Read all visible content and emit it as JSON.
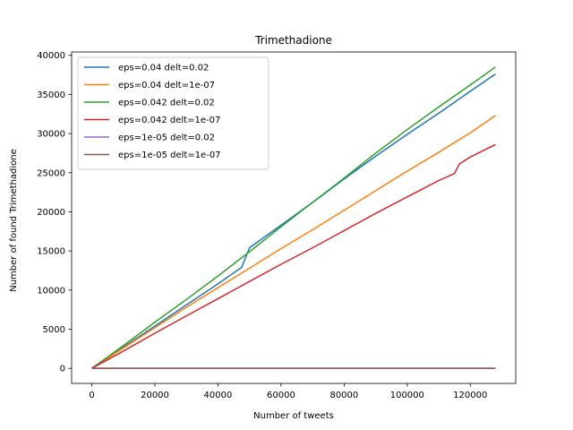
{
  "chart_data": {
    "type": "line",
    "title": "Trimethadione",
    "xlabel": "Number of tweets",
    "ylabel": "Number of found Trimethadione",
    "xlim": [
      -6400,
      134400
    ],
    "ylim": [
      -1925,
      40425
    ],
    "xticks": [
      0,
      20000,
      40000,
      60000,
      80000,
      100000,
      120000
    ],
    "yticks": [
      0,
      5000,
      10000,
      15000,
      20000,
      25000,
      30000,
      35000,
      40000
    ],
    "legend_position": "upper left",
    "grid": false,
    "series": [
      {
        "name": "eps=0.04 delt=0.02",
        "color": "#1f77b4",
        "points": [
          [
            0,
            0
          ],
          [
            10000,
            2700
          ],
          [
            20000,
            5400
          ],
          [
            30000,
            8100
          ],
          [
            40000,
            10800
          ],
          [
            47500,
            12900
          ],
          [
            50000,
            15400
          ],
          [
            60000,
            18300
          ],
          [
            70000,
            21200
          ],
          [
            80000,
            24200
          ],
          [
            90000,
            27100
          ],
          [
            100000,
            29900
          ],
          [
            110000,
            32600
          ],
          [
            120000,
            35400
          ],
          [
            128000,
            37600
          ]
        ]
      },
      {
        "name": "eps=0.04 delt=1e-07",
        "color": "#ff7f0e",
        "points": [
          [
            0,
            0
          ],
          [
            10000,
            2600
          ],
          [
            20000,
            5200
          ],
          [
            30000,
            7800
          ],
          [
            40000,
            10300
          ],
          [
            50000,
            12800
          ],
          [
            60000,
            15300
          ],
          [
            70000,
            17700
          ],
          [
            80000,
            20200
          ],
          [
            90000,
            22700
          ],
          [
            100000,
            25200
          ],
          [
            110000,
            27600
          ],
          [
            120000,
            30100
          ],
          [
            128000,
            32300
          ]
        ]
      },
      {
        "name": "eps=0.042 delt=0.02",
        "color": "#2ca02c",
        "points": [
          [
            0,
            0
          ],
          [
            10000,
            2900
          ],
          [
            20000,
            5900
          ],
          [
            30000,
            8800
          ],
          [
            40000,
            11800
          ],
          [
            50000,
            14900
          ],
          [
            60000,
            18100
          ],
          [
            70000,
            21200
          ],
          [
            80000,
            24300
          ],
          [
            90000,
            27500
          ],
          [
            100000,
            30500
          ],
          [
            110000,
            33400
          ],
          [
            120000,
            36200
          ],
          [
            128000,
            38500
          ]
        ]
      },
      {
        "name": "eps=0.042 delt=1e-07",
        "color": "#d62728",
        "points": [
          [
            0,
            0
          ],
          [
            10000,
            2200
          ],
          [
            20000,
            4500
          ],
          [
            30000,
            6700
          ],
          [
            40000,
            8900
          ],
          [
            50000,
            11100
          ],
          [
            60000,
            13300
          ],
          [
            70000,
            15400
          ],
          [
            80000,
            17600
          ],
          [
            90000,
            19800
          ],
          [
            100000,
            21900
          ],
          [
            110000,
            24000
          ],
          [
            115000,
            24900
          ],
          [
            116500,
            26100
          ],
          [
            120000,
            27000
          ],
          [
            128000,
            28600
          ]
        ]
      },
      {
        "name": "eps=1e-05 delt=0.02",
        "color": "#9467bd",
        "points": [
          [
            0,
            0
          ],
          [
            128000,
            0
          ]
        ]
      },
      {
        "name": "eps=1e-05 delt=1e-07",
        "color": "#8c564b",
        "points": [
          [
            0,
            0
          ],
          [
            128000,
            0
          ]
        ]
      }
    ]
  }
}
